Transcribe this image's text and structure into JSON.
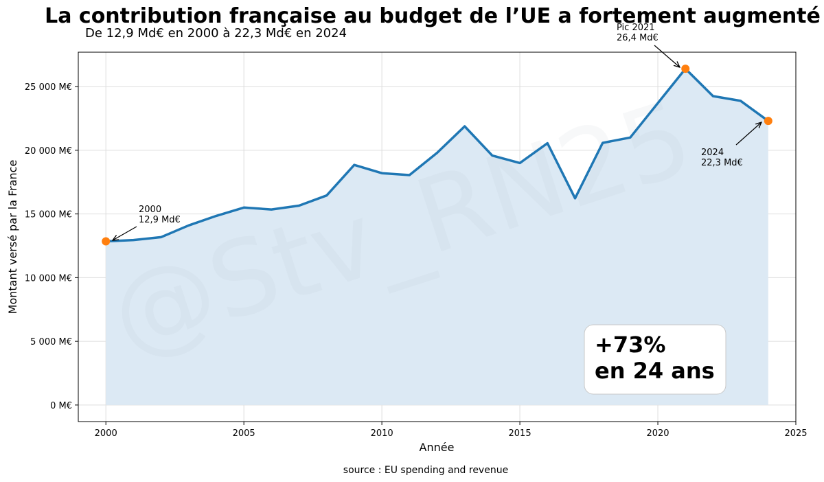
{
  "title": "La contribution française au budget de l’UE a fortement augmenté",
  "subtitle": "De 12,9 Md€ en 2000 à 22,3 Md€ en 2024",
  "source": "source : EU spending and revenue",
  "watermark": "@Stv_RN25",
  "highlight": {
    "line1": "+73%",
    "line2": "en 24 ans"
  },
  "colors": {
    "line": "#1f77b4",
    "fill": "#dce9f4",
    "marker": "#ff7f0e"
  },
  "chart_data": {
    "type": "area",
    "title": "La contribution française au budget de l’UE a fortement augmenté",
    "subtitle": "De 12,9 Md€ en 2000 à 22,3 Md€ en 2024",
    "xlabel": "Année",
    "ylabel": "Montant versé par la France",
    "xlim": [
      1999,
      2025
    ],
    "ylim": [
      -1300,
      27700
    ],
    "grid": true,
    "x_ticks": [
      2000,
      2005,
      2010,
      2015,
      2020,
      2025
    ],
    "y_ticks": [
      0,
      5000,
      10000,
      15000,
      20000,
      25000
    ],
    "y_tick_labels": [
      "0 M€",
      "5 000 M€",
      "10 000 M€",
      "15 000 M€",
      "20 000 M€",
      "25 000 M€"
    ],
    "series": [
      {
        "x": [
          2000,
          2001,
          2002,
          2003,
          2004,
          2005,
          2006,
          2007,
          2008,
          2009,
          2010,
          2011,
          2012,
          2013,
          2014,
          2015,
          2016,
          2017,
          2018,
          2019,
          2020,
          2021,
          2022,
          2023,
          2024
        ],
        "values": [
          12850,
          12950,
          13180,
          14100,
          14850,
          15500,
          15350,
          15650,
          16450,
          18850,
          18200,
          18050,
          19800,
          21880,
          19580,
          19000,
          20550,
          16230,
          20580,
          21000,
          23700,
          26400,
          24250,
          23880,
          22300
        ]
      }
    ],
    "markers": [
      {
        "x": 2000,
        "y": 12850
      },
      {
        "x": 2021,
        "y": 26400
      },
      {
        "x": 2024,
        "y": 22300
      }
    ],
    "annotations": [
      {
        "line1": "2000",
        "line2": "12,9 Md€",
        "x": 2000,
        "y": 12850
      },
      {
        "line1": "Pic 2021",
        "line2": "26,4 Md€",
        "x": 2021,
        "y": 26400
      },
      {
        "line1": "2024",
        "line2": "22,3 Md€",
        "x": 2024,
        "y": 22300
      }
    ]
  }
}
